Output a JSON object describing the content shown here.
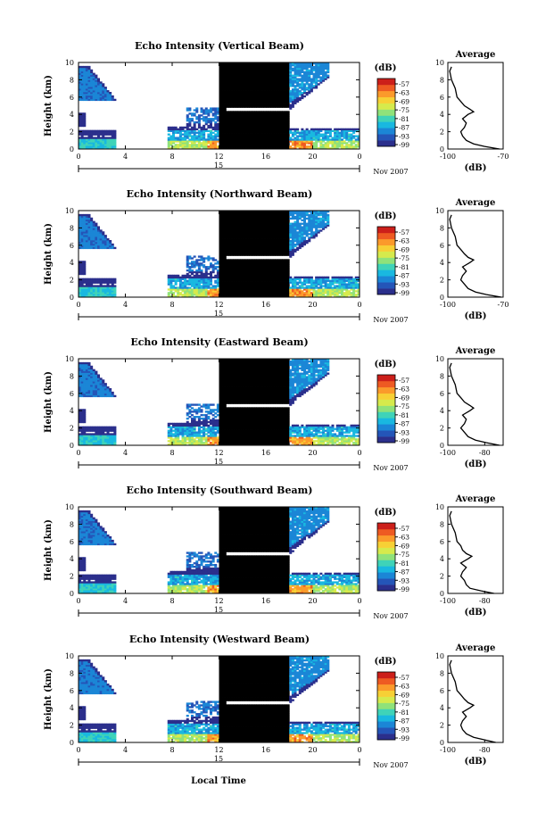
{
  "figure": {
    "xlabel": "Local Time",
    "date_label": "Nov 2007"
  },
  "colorbar": {
    "unit": "(dB)",
    "ticks": [
      "-57",
      "-63",
      "-69",
      "-75",
      "-81",
      "-87",
      "-93",
      "-99"
    ],
    "colors": [
      "#2b2f8c",
      "#2455b8",
      "#1b86d6",
      "#19b8e0",
      "#3fd3b8",
      "#8fe27a",
      "#d6ea4c",
      "#f7d035",
      "#fb9a2b",
      "#ee5a22",
      "#cc1f1a"
    ]
  },
  "chart_data": [
    {
      "type": "heatmap",
      "title": "Echo Intensity (Vertical Beam)",
      "ylabel": "Height (km)",
      "x_ticks": [
        "0",
        "4",
        "8",
        "12",
        "16",
        "20",
        "0"
      ],
      "x_range": [
        0,
        24
      ],
      "y_ticks": [
        "0",
        "2",
        "4",
        "6",
        "8",
        "10"
      ],
      "y_range": [
        0,
        10
      ],
      "date_marker": "15",
      "inset": {
        "title": "Average",
        "xlabel": "(dB)",
        "x_ticks": [
          "-100",
          "-70"
        ],
        "x_range": [
          -100,
          -70
        ],
        "y_ticks": [
          "0",
          "2",
          "4",
          "6",
          "8",
          "10"
        ],
        "height_km": [
          0,
          0.3,
          0.6,
          1,
          1.5,
          2,
          2.5,
          3,
          3.5,
          4,
          4.3,
          4.6,
          5,
          5.5,
          6,
          7,
          8,
          9,
          9.5
        ],
        "db": [
          -72,
          -80,
          -86,
          -90,
          -92,
          -93,
          -91,
          -90,
          -92,
          -89,
          -86,
          -88,
          -91,
          -93,
          -95,
          -96,
          -98,
          -99,
          -98
        ]
      }
    },
    {
      "type": "heatmap",
      "title": "Echo Intensity (Northward Beam)",
      "ylabel": "Height (km)",
      "x_ticks": [
        "0",
        "4",
        "8",
        "12",
        "16",
        "20",
        "0"
      ],
      "x_range": [
        0,
        24
      ],
      "y_ticks": [
        "0",
        "2",
        "4",
        "6",
        "8",
        "10"
      ],
      "y_range": [
        0,
        10
      ],
      "date_marker": "15",
      "inset": {
        "title": "Average",
        "xlabel": "(dB)",
        "x_ticks": [
          "-100",
          "-70"
        ],
        "x_range": [
          -100,
          -70
        ],
        "y_ticks": [
          "0",
          "2",
          "4",
          "6",
          "8",
          "10"
        ],
        "height_km": [
          0,
          0.3,
          0.6,
          1,
          1.5,
          2,
          2.5,
          3,
          3.5,
          4,
          4.3,
          4.6,
          5,
          5.5,
          6,
          7,
          8,
          9,
          9.5
        ],
        "db": [
          -71,
          -79,
          -85,
          -89,
          -91,
          -93,
          -92,
          -90,
          -92,
          -88,
          -86,
          -89,
          -91,
          -93,
          -95,
          -96,
          -98,
          -99,
          -98
        ]
      }
    },
    {
      "type": "heatmap",
      "title": "Echo Intensity (Eastward Beam)",
      "ylabel": "Height (km)",
      "x_ticks": [
        "0",
        "4",
        "8",
        "12",
        "16",
        "20",
        "0"
      ],
      "x_range": [
        0,
        24
      ],
      "y_ticks": [
        "0",
        "2",
        "4",
        "6",
        "8",
        "10"
      ],
      "y_range": [
        0,
        10
      ],
      "date_marker": "15",
      "inset": {
        "title": "Average",
        "xlabel": "(dB)",
        "x_ticks": [
          "-100",
          "-80"
        ],
        "x_range": [
          -100,
          -70
        ],
        "y_ticks": [
          "0",
          "2",
          "4",
          "6",
          "8",
          "10"
        ],
        "height_km": [
          0,
          0.3,
          0.6,
          1,
          1.5,
          2,
          2.5,
          3,
          3.5,
          4,
          4.3,
          4.6,
          5,
          5.5,
          6,
          7,
          8,
          9,
          9.5
        ],
        "db": [
          -72,
          -79,
          -85,
          -89,
          -91,
          -93,
          -91,
          -90,
          -92,
          -88,
          -86,
          -88,
          -91,
          -93,
          -95,
          -96,
          -98,
          -99,
          -98
        ]
      }
    },
    {
      "type": "heatmap",
      "title": "Echo Intensity (Southward Beam)",
      "ylabel": "Height (km)",
      "x_ticks": [
        "0",
        "4",
        "8",
        "12",
        "16",
        "20",
        "0"
      ],
      "x_range": [
        0,
        24
      ],
      "y_ticks": [
        "0",
        "2",
        "4",
        "6",
        "8",
        "10"
      ],
      "y_range": [
        0,
        10
      ],
      "date_marker": "15",
      "inset": {
        "title": "Average",
        "xlabel": "(dB)",
        "x_ticks": [
          "-100",
          "-80"
        ],
        "x_range": [
          -100,
          -70
        ],
        "y_ticks": [
          "0",
          "2",
          "4",
          "6",
          "8",
          "10"
        ],
        "height_km": [
          0,
          0.3,
          0.6,
          1,
          1.5,
          2,
          2.5,
          3,
          3.5,
          4,
          4.3,
          4.6,
          5,
          5.5,
          6,
          7,
          8,
          9,
          9.5
        ],
        "db": [
          -75,
          -82,
          -88,
          -90,
          -91,
          -93,
          -92,
          -90,
          -93,
          -89,
          -87,
          -90,
          -92,
          -93,
          -95,
          -96,
          -98,
          -99,
          -98
        ]
      }
    },
    {
      "type": "heatmap",
      "title": "Echo Intensity (Westward Beam)",
      "ylabel": "Height (km)",
      "x_ticks": [
        "0",
        "4",
        "8",
        "12",
        "16",
        "20",
        "0"
      ],
      "x_range": [
        0,
        24
      ],
      "y_ticks": [
        "0",
        "2",
        "4",
        "6",
        "8",
        "10"
      ],
      "y_range": [
        0,
        10
      ],
      "date_marker": "15",
      "inset": {
        "title": "Average",
        "xlabel": "(dB)",
        "x_ticks": [
          "-100",
          "-80"
        ],
        "x_range": [
          -100,
          -70
        ],
        "y_ticks": [
          "0",
          "2",
          "4",
          "6",
          "8",
          "10"
        ],
        "height_km": [
          0,
          0.3,
          0.6,
          1,
          1.5,
          2,
          2.5,
          3,
          3.5,
          4,
          4.3,
          4.6,
          5,
          5.5,
          6,
          7,
          8,
          9,
          9.5
        ],
        "db": [
          -74,
          -80,
          -86,
          -90,
          -92,
          -93,
          -92,
          -90,
          -92,
          -88,
          -86,
          -89,
          -91,
          -93,
          -95,
          -96,
          -98,
          -99,
          -98
        ]
      }
    }
  ]
}
